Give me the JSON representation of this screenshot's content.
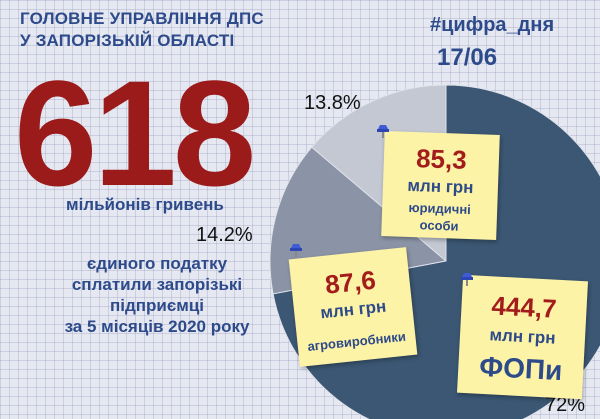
{
  "header": {
    "line1": "ГОЛОВНЕ УПРАВЛІННЯ ДПС",
    "line2": "У ЗАПОРІЗЬКІЙ ОБЛАСТІ",
    "hashtag": "#цифра_дня",
    "date": "17/06"
  },
  "headline": {
    "value": "618",
    "unit": "мільйонів гривень",
    "description": "єдиного податку\nсплатили запорізькі\nпідприємці\nза 5 місяців 2020 року"
  },
  "chart_data": {
    "type": "pie",
    "unit": "млн грн",
    "slices": [
      {
        "label": "ФОПи",
        "value": 444.7,
        "percent_label": "72%",
        "color": "#3b5773"
      },
      {
        "label": "агровиробники",
        "value": 87.6,
        "percent_label": "14.2%",
        "color": "#8b94a6"
      },
      {
        "label": "юридичні особи",
        "value": 85.3,
        "percent_label": "13.8%",
        "color": "#c4c8d3"
      }
    ]
  },
  "notes": {
    "legal": {
      "value": "85,3",
      "unit": "млн грн",
      "label_line1": "юридичні",
      "label_line2": "особи"
    },
    "agro": {
      "value": "87,6",
      "unit": "млн грн",
      "label": "агровиробники"
    },
    "fop": {
      "value": "444,7",
      "unit": "млн грн",
      "label": "ФОПи"
    }
  },
  "colors": {
    "accent_red": "#9b1a1a",
    "text_blue": "#2d4a8a",
    "note_yellow": "#fdf3a6",
    "pin_blue": "#3f5bd6"
  }
}
